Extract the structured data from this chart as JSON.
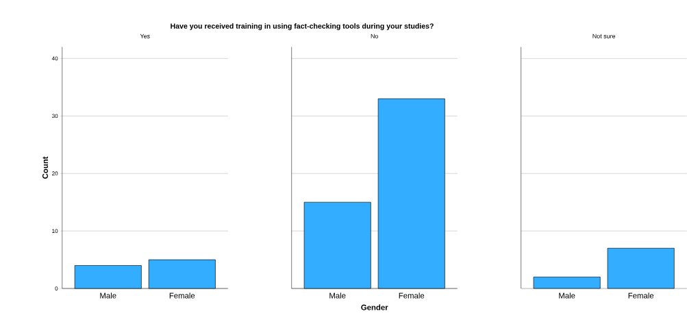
{
  "chart_data": [
    {
      "type": "bar",
      "title": "Have you received training in using fact-checking tools during your studies?",
      "subtitle": "Yes",
      "ylabel": "Count",
      "categories": [
        "Male",
        "Female"
      ],
      "values": [
        4,
        5
      ],
      "color": "#33adff",
      "ylim": [
        0,
        42
      ],
      "yticks": [
        0,
        10,
        20,
        30,
        40
      ],
      "grid": "y"
    },
    {
      "type": "bar",
      "subtitle": "No",
      "xlabel": "Gender",
      "categories": [
        "Male",
        "Female"
      ],
      "values": [
        15,
        33
      ],
      "color": "#33adff",
      "ylim": [
        0,
        42
      ],
      "yticks": [
        0,
        10,
        20,
        30,
        40
      ],
      "grid": "y",
      "tick_labels": "x"
    },
    {
      "type": "bar",
      "subtitle": "Not sure",
      "categories": [
        "Male",
        "Female"
      ],
      "values": [
        2,
        7
      ],
      "color": "#33adff",
      "ylim": [
        0,
        42
      ],
      "yticks": [
        0,
        10,
        20,
        30,
        40
      ],
      "grid": "y",
      "tick_labels": "x"
    }
  ]
}
